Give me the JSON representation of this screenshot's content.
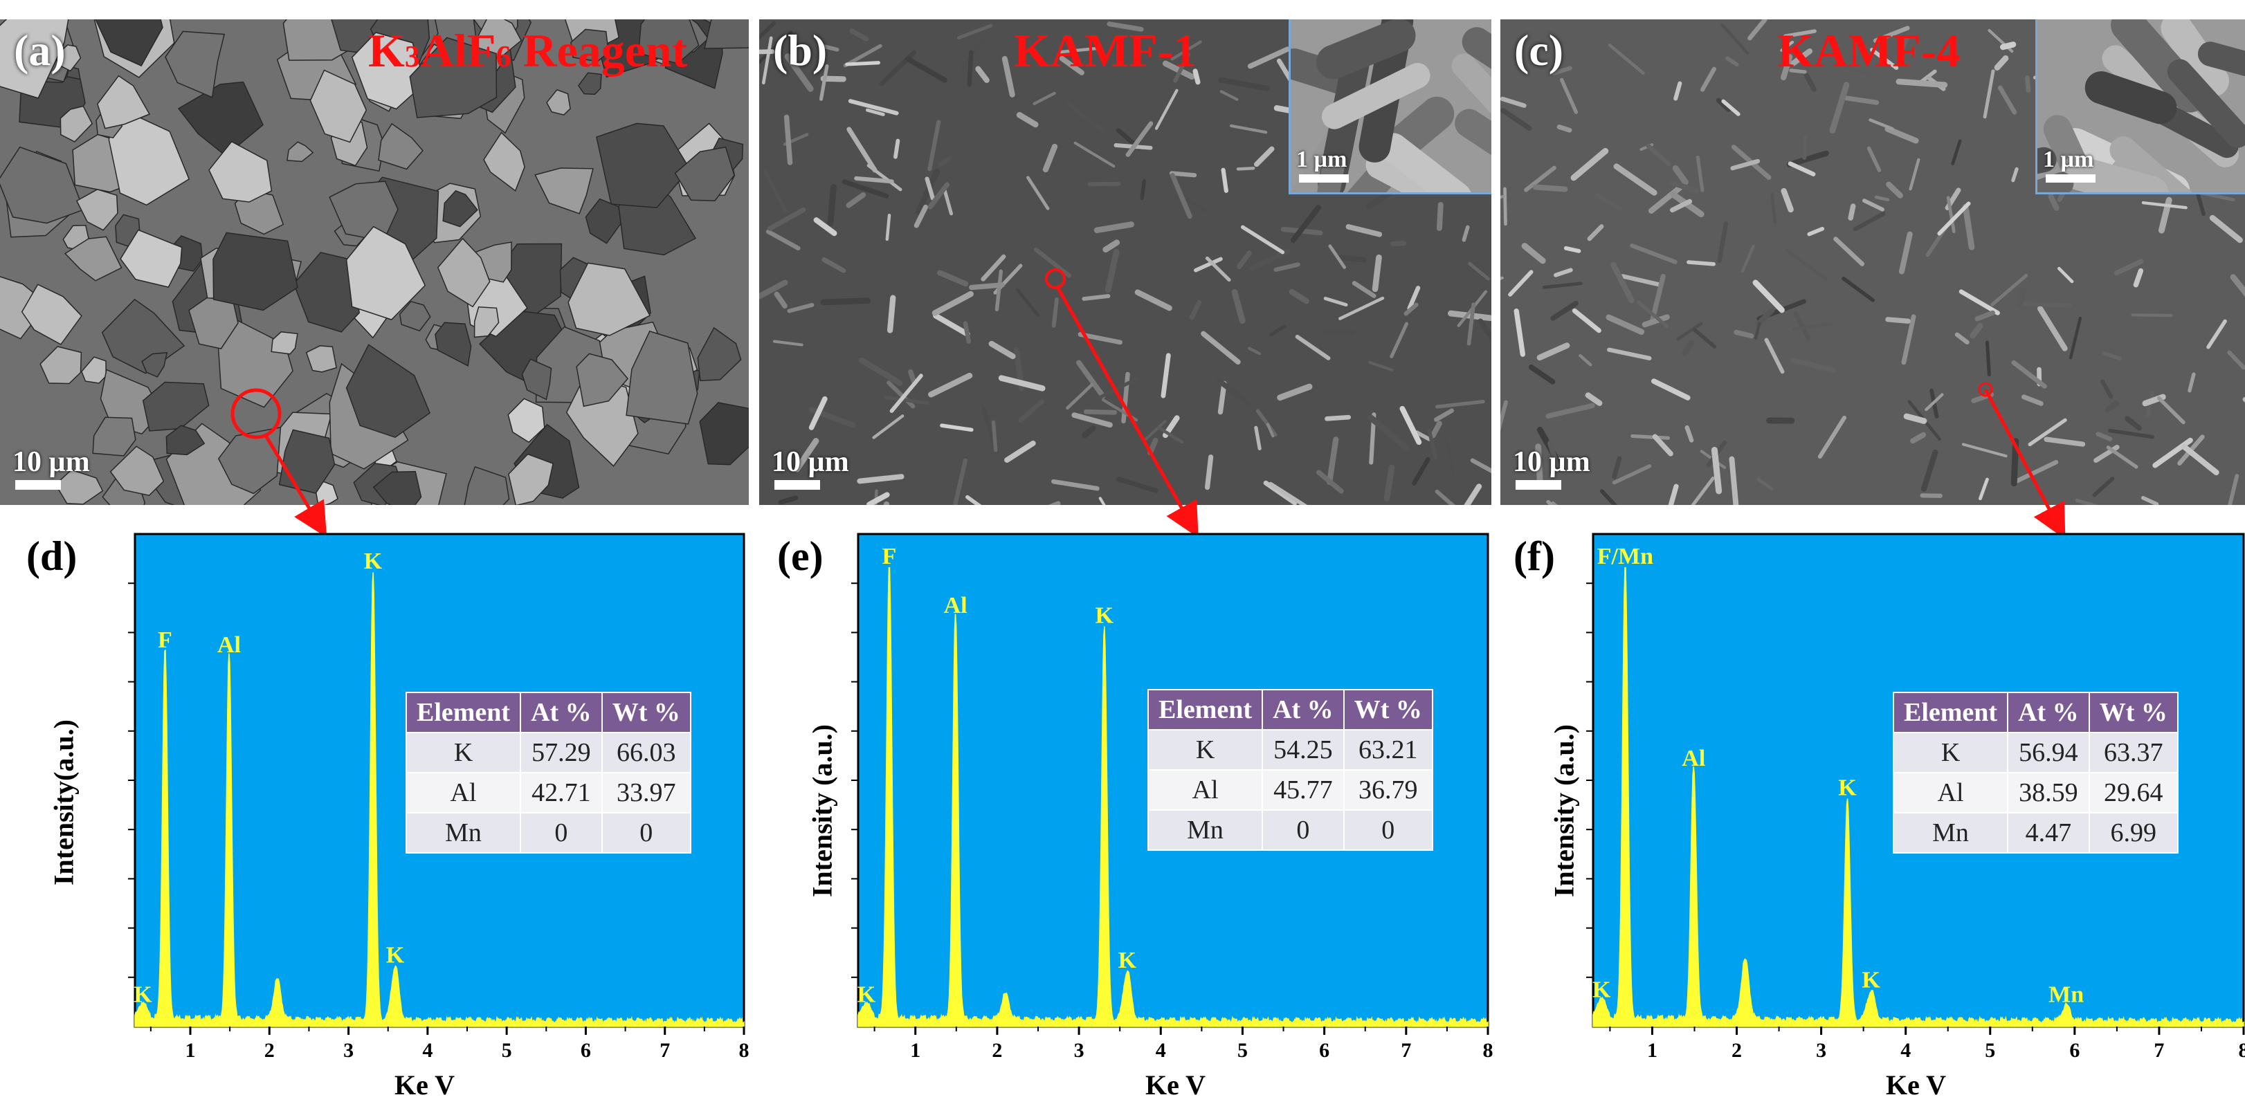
{
  "sem_panels": [
    {
      "letter": "(a)",
      "title": "K3AlF6 Reagent",
      "title_main": "K",
      "title_sub1": "3",
      "title_mid": "AlF",
      "title_sub2": "6",
      "title_end": " Reagent",
      "scale": "10 µm",
      "inset_scale": ""
    },
    {
      "letter": "(b)",
      "title": "KAMF-1",
      "scale": "10 µm",
      "inset_scale": "1 µm"
    },
    {
      "letter": "(c)",
      "title": "KAMF-4",
      "scale": "10 µm",
      "inset_scale": "1 µm"
    }
  ],
  "eds_panels": [
    {
      "letter": "(d)",
      "ylabel": "Intensity(a.u.)",
      "xlabel": "Ke V",
      "table": {
        "headers": [
          "Element",
          "At %",
          "Wt %"
        ],
        "rows": [
          [
            "K",
            "57.29",
            "66.03"
          ],
          [
            "Al",
            "42.71",
            "33.97"
          ],
          [
            "Mn",
            "0",
            "0"
          ]
        ]
      }
    },
    {
      "letter": "(e)",
      "ylabel": "Intensity (a.u.)",
      "xlabel": "Ke V",
      "table": {
        "headers": [
          "Element",
          "At %",
          "Wt %"
        ],
        "rows": [
          [
            "K",
            "54.25",
            "63.21"
          ],
          [
            "Al",
            "45.77",
            "36.79"
          ],
          [
            "Mn",
            "0",
            "0"
          ]
        ]
      }
    },
    {
      "letter": "(f)",
      "ylabel": "Intensity (a.u.)",
      "xlabel": "Ke V",
      "table": {
        "headers": [
          "Element",
          "At %",
          "Wt %"
        ],
        "rows": [
          [
            "K",
            "56.94",
            "63.37"
          ],
          [
            "Al",
            "38.59",
            "29.64"
          ],
          [
            "Mn",
            "4.47",
            "6.99"
          ]
        ]
      }
    }
  ],
  "chart_data": [
    {
      "type": "line",
      "xlabel": "Ke V",
      "ylabel": "Intensity(a.u.)",
      "xlim": [
        0.3,
        8
      ],
      "xticks": [
        1,
        2,
        3,
        4,
        5,
        6,
        7,
        8
      ],
      "ylim": [
        0,
        100
      ],
      "peaks": [
        {
          "label": "K",
          "x": 0.4,
          "y": 3
        },
        {
          "label": "F",
          "x": 0.68,
          "y": 75
        },
        {
          "label": "Al",
          "x": 1.49,
          "y": 74
        },
        {
          "label": "",
          "x": 2.1,
          "y": 8
        },
        {
          "label": "K",
          "x": 3.31,
          "y": 91
        },
        {
          "label": "K",
          "x": 3.59,
          "y": 11
        }
      ],
      "colors": {
        "background": "#00a2f0",
        "line": "#ffff33"
      }
    },
    {
      "type": "line",
      "xlabel": "Ke V",
      "ylabel": "Intensity (a.u.)",
      "xlim": [
        0.3,
        8
      ],
      "xticks": [
        1,
        2,
        3,
        4,
        5,
        6,
        7,
        8
      ],
      "ylim": [
        0,
        100
      ],
      "peaks": [
        {
          "label": "K",
          "x": 0.4,
          "y": 3
        },
        {
          "label": "F",
          "x": 0.68,
          "y": 92
        },
        {
          "label": "Al",
          "x": 1.49,
          "y": 82
        },
        {
          "label": "",
          "x": 2.1,
          "y": 5
        },
        {
          "label": "K",
          "x": 3.31,
          "y": 80
        },
        {
          "label": "K",
          "x": 3.59,
          "y": 10
        }
      ],
      "colors": {
        "background": "#00a2f0",
        "line": "#ffff33"
      }
    },
    {
      "type": "line",
      "xlabel": "Ke V",
      "ylabel": "Intensity (a.u.)",
      "xlim": [
        0.3,
        8
      ],
      "xticks": [
        1,
        2,
        3,
        4,
        5,
        6,
        7,
        8
      ],
      "ylim": [
        0,
        100
      ],
      "peaks": [
        {
          "label": "K",
          "x": 0.4,
          "y": 4
        },
        {
          "label": "F/Mn",
          "x": 0.68,
          "y": 92
        },
        {
          "label": "Al",
          "x": 1.49,
          "y": 51
        },
        {
          "label": "",
          "x": 2.1,
          "y": 12
        },
        {
          "label": "K",
          "x": 3.31,
          "y": 45
        },
        {
          "label": "K",
          "x": 3.59,
          "y": 6
        },
        {
          "label": "Mn",
          "x": 5.9,
          "y": 3
        }
      ],
      "colors": {
        "background": "#00a2f0",
        "line": "#ffff33"
      }
    }
  ],
  "colors": {
    "title_red": "#ff1010",
    "table_header": "#7a5b93",
    "arrow": "#ff1010"
  }
}
